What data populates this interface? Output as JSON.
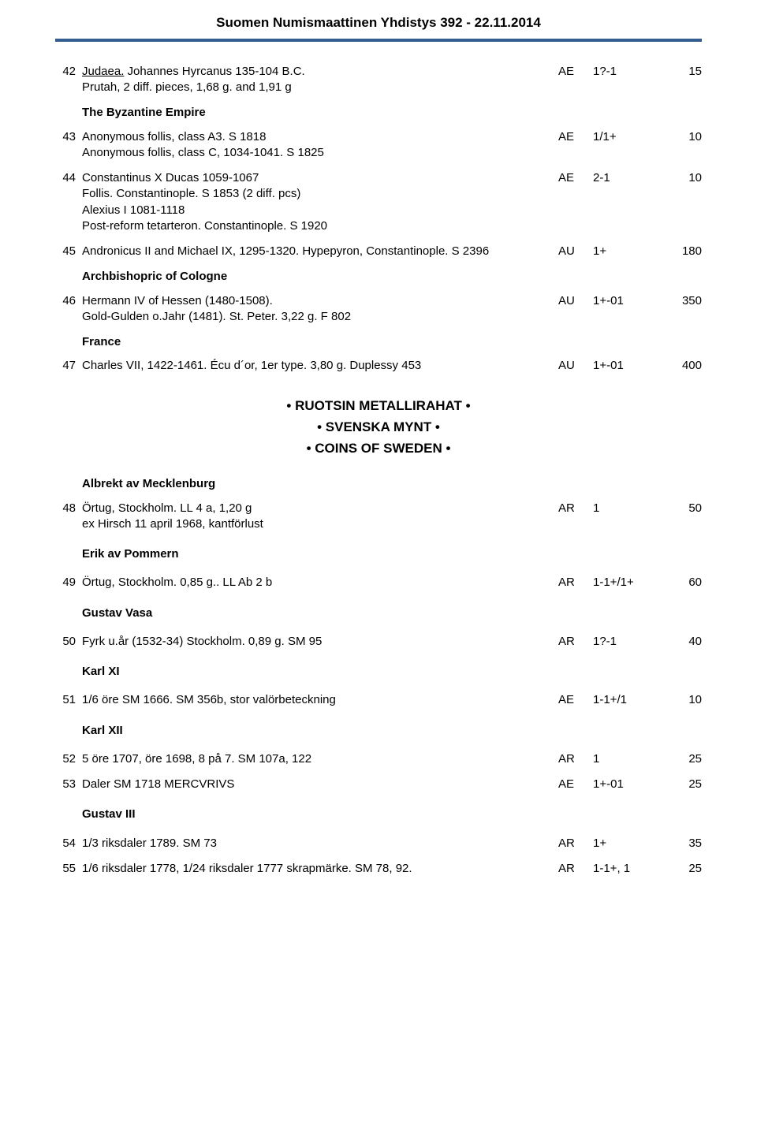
{
  "header": {
    "title": "Suomen Numismaattinen Yhdistys 392 - 22.11.2014",
    "rule_color": "#345d8f"
  },
  "lots": [
    {
      "num": "42",
      "desc": "<span class='underline'>Judaea.</span> Johannes Hyrcanus 135-104 B.C.<br>Prutah, 2 diff. pieces, 1,68 g. and 1,91 g",
      "metal": "AE",
      "grade": "1?-1",
      "price": "15"
    }
  ],
  "section_byzantine": "The Byzantine Empire",
  "lots2": [
    {
      "num": "43",
      "desc": "Anonymous follis, class A3. S 1818<br>Anonymous follis, class C, 1034-1041. S 1825",
      "metal": "AE",
      "grade": "1/1+",
      "price": "10"
    },
    {
      "num": "44",
      "desc": "Constantinus X Ducas 1059-1067<br>Follis. Constantinople. S 1853 (2 diff. pcs)<br>Alexius I 1081-1118<br>Post-reform tetarteron. Constantinople. S 1920",
      "metal": "AE",
      "grade": "2-1",
      "price": "10"
    },
    {
      "num": "45",
      "desc": "Andronicus II and Michael IX, 1295-1320. Hypepyron, Constantinople. S 2396",
      "metal": "AU",
      "grade": "1+",
      "price": "180"
    }
  ],
  "section_cologne": "Archbishopric of Cologne",
  "lots3": [
    {
      "num": "46",
      "desc": "Hermann IV of Hessen (1480-1508).<br>Gold-Gulden o.Jahr (1481). St. Peter. 3,22 g. F 802",
      "metal": "AU",
      "grade": "1+-01",
      "price": "350"
    }
  ],
  "section_france": "France",
  "lots4": [
    {
      "num": "47",
      "desc": "Charles VII, 1422-1461. Écu d´or, 1er type. 3,80 g. Duplessy 453",
      "metal": "AU",
      "grade": "1+-01",
      "price": "400"
    }
  ],
  "centered": {
    "l1": "•  RUOTSIN METALLIRAHAT  •",
    "l2": "•  SVENSKA MYNT  •",
    "l3": "•  COINS OF SWEDEN  •"
  },
  "section_albrekt": "Albrekt av Mecklenburg",
  "lots5": [
    {
      "num": "48",
      "desc": "Örtug, Stockholm. LL 4 a, 1,20 g<br>ex Hirsch 11 april 1968, kantförlust",
      "metal": "AR",
      "grade": "1",
      "price": "50"
    }
  ],
  "section_erik": "Erik av Pommern",
  "lots6": [
    {
      "num": "49",
      "desc": "Örtug, Stockholm. 0,85 g.. LL Ab 2 b",
      "metal": "AR",
      "grade": "1-1+/1+",
      "price": "60"
    }
  ],
  "section_vasa": "Gustav Vasa",
  "lots7": [
    {
      "num": "50",
      "desc": "Fyrk u.år (1532-34) Stockholm. 0,89 g. SM 95",
      "metal": "AR",
      "grade": "1?-1",
      "price": "40"
    }
  ],
  "section_karl11": "Karl XI",
  "lots8": [
    {
      "num": "51",
      "desc": "1/6 öre SM 1666. SM 356b, stor valörbeteckning",
      "metal": "AE",
      "grade": "1-1+/1",
      "price": "10"
    }
  ],
  "section_karl12": "Karl XII",
  "lots9": [
    {
      "num": "52",
      "desc": "5 öre 1707, öre 1698, 8 på 7. SM 107a, 122",
      "metal": "AR",
      "grade": "1",
      "price": "25"
    },
    {
      "num": "53",
      "desc": "Daler SM 1718 MERCVRIVS",
      "metal": "AE",
      "grade": "1+-01",
      "price": "25"
    }
  ],
  "section_gustav3": "Gustav III",
  "lots10": [
    {
      "num": "54",
      "desc": "1/3 riksdaler 1789. SM 73",
      "metal": "AR",
      "grade": "1+",
      "price": "35"
    },
    {
      "num": "55",
      "desc": "1/6 riksdaler 1778, 1/24 riksdaler 1777 skrapmärke. SM 78, 92.",
      "metal": "AR",
      "grade": "1-1+, 1",
      "price": "25"
    }
  ]
}
